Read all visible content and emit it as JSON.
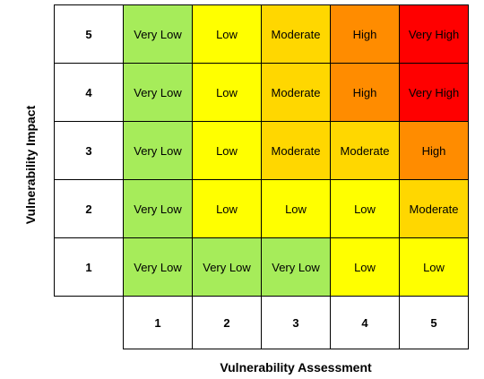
{
  "y_axis_title": "Vulnerability Impact",
  "x_axis_title": "Vulnerability Assessment",
  "x_labels": [
    "1",
    "2",
    "3",
    "4",
    "5"
  ],
  "rows": [
    {
      "impact": "5",
      "cells": [
        {
          "label": "Very Low",
          "color": "#a6ec5a"
        },
        {
          "label": "Low",
          "color": "#ffff00"
        },
        {
          "label": "Moderate",
          "color": "#ffd700"
        },
        {
          "label": "High",
          "color": "#ff8c00"
        },
        {
          "label": "Very High",
          "color": "#ff0000"
        }
      ]
    },
    {
      "impact": "4",
      "cells": [
        {
          "label": "Very Low",
          "color": "#a6ec5a"
        },
        {
          "label": "Low",
          "color": "#ffff00"
        },
        {
          "label": "Moderate",
          "color": "#ffd700"
        },
        {
          "label": "High",
          "color": "#ff8c00"
        },
        {
          "label": "Very High",
          "color": "#ff0000"
        }
      ]
    },
    {
      "impact": "3",
      "cells": [
        {
          "label": "Very Low",
          "color": "#a6ec5a"
        },
        {
          "label": "Low",
          "color": "#ffff00"
        },
        {
          "label": "Moderate",
          "color": "#ffd700"
        },
        {
          "label": "Moderate",
          "color": "#ffd700"
        },
        {
          "label": "High",
          "color": "#ff8c00"
        }
      ]
    },
    {
      "impact": "2",
      "cells": [
        {
          "label": "Very Low",
          "color": "#a6ec5a"
        },
        {
          "label": "Low",
          "color": "#ffff00"
        },
        {
          "label": "Low",
          "color": "#ffff00"
        },
        {
          "label": "Low",
          "color": "#ffff00"
        },
        {
          "label": "Moderate",
          "color": "#ffd700"
        }
      ]
    },
    {
      "impact": "1",
      "cells": [
        {
          "label": "Very Low",
          "color": "#a6ec5a"
        },
        {
          "label": "Very Low",
          "color": "#a6ec5a"
        },
        {
          "label": "Very Low",
          "color": "#a6ec5a"
        },
        {
          "label": "Low",
          "color": "#ffff00"
        },
        {
          "label": "Low",
          "color": "#ffff00"
        }
      ]
    }
  ]
}
